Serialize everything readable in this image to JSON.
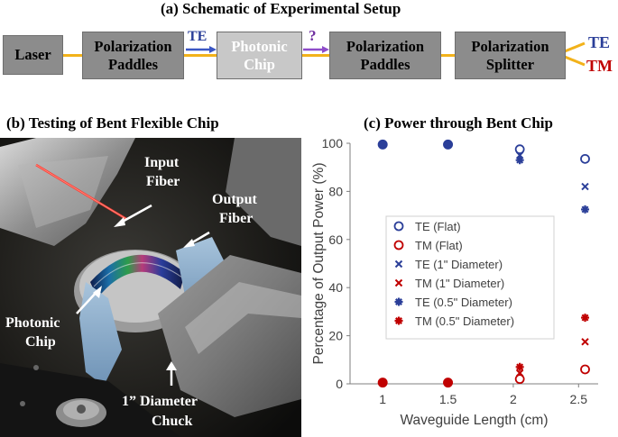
{
  "panel_a": {
    "title": "(a) Schematic of Experimental Setup",
    "boxes": {
      "laser": "Laser",
      "paddles1_line1": "Polarization",
      "paddles1_line2": "Paddles",
      "chip_line1": "Photonic",
      "chip_line2": "Chip",
      "paddles2_line1": "Polarization",
      "paddles2_line2": "Paddles",
      "splitter_line1": "Polarization",
      "splitter_line2": "Splitter"
    },
    "arrow_te_label": "TE",
    "arrow_unknown_label": "?",
    "out_te": "TE",
    "out_tm": "TM",
    "colors": {
      "te": "#2b3f99",
      "tm": "#c00000",
      "question": "#7030a0",
      "fiber": "#f2b21a"
    }
  },
  "panel_b": {
    "title": "(b) Testing of Bent Flexible Chip",
    "annotations": {
      "input_line1": "Input",
      "input_line2": "Fiber",
      "output_line1": "Output",
      "output_line2": "Fiber",
      "chip_line1": "Photonic",
      "chip_line2": "Chip",
      "chuck_line1": "1” Diameter",
      "chuck_line2": "Chuck"
    }
  },
  "panel_c": {
    "title": "(c) Power through Bent Chip"
  },
  "chart_data": {
    "type": "scatter",
    "xlabel": "Waveguide Length (cm)",
    "ylabel": "Percentage of Output Power (%)",
    "xlim": [
      0.75,
      2.65
    ],
    "ylim": [
      0,
      100
    ],
    "xticks": [
      1,
      1.5,
      2,
      2.5
    ],
    "xtick_labels": [
      "1",
      "1.5",
      "2",
      "2.5"
    ],
    "yticks": [
      0,
      20,
      40,
      60,
      80,
      100
    ],
    "legend_position": "center-left",
    "series": [
      {
        "name": "TE (Flat)",
        "marker": "circle",
        "color": "#2b3f99",
        "x": [
          1,
          1.5,
          2.05,
          2.55
        ],
        "y": [
          99.5,
          99.5,
          97.5,
          93.5
        ]
      },
      {
        "name": "TM (Flat)",
        "marker": "circle",
        "color": "#c00000",
        "x": [
          1,
          1.5,
          2.05,
          2.55
        ],
        "y": [
          0.5,
          0.5,
          2,
          6
        ]
      },
      {
        "name": "TE (1\" Diameter)",
        "marker": "x",
        "color": "#2b3f99",
        "x": [
          1,
          1.5,
          2.05,
          2.55
        ],
        "y": [
          99.5,
          99.5,
          95,
          82
        ]
      },
      {
        "name": "TM (1\" Diameter)",
        "marker": "x",
        "color": "#c00000",
        "x": [
          1,
          1.5,
          2.05,
          2.55
        ],
        "y": [
          0.5,
          0.5,
          4.5,
          17.5
        ]
      },
      {
        "name": "TE (0.5\" Diameter)",
        "marker": "star",
        "color": "#2b3f99",
        "x": [
          1,
          1.5,
          2.05,
          2.55
        ],
        "y": [
          99.5,
          99.5,
          93,
          72.5
        ]
      },
      {
        "name": "TM (0.5\" Diameter)",
        "marker": "star",
        "color": "#c00000",
        "x": [
          1,
          1.5,
          2.05,
          2.55
        ],
        "y": [
          0.5,
          0.5,
          7,
          27.5
        ]
      }
    ]
  }
}
